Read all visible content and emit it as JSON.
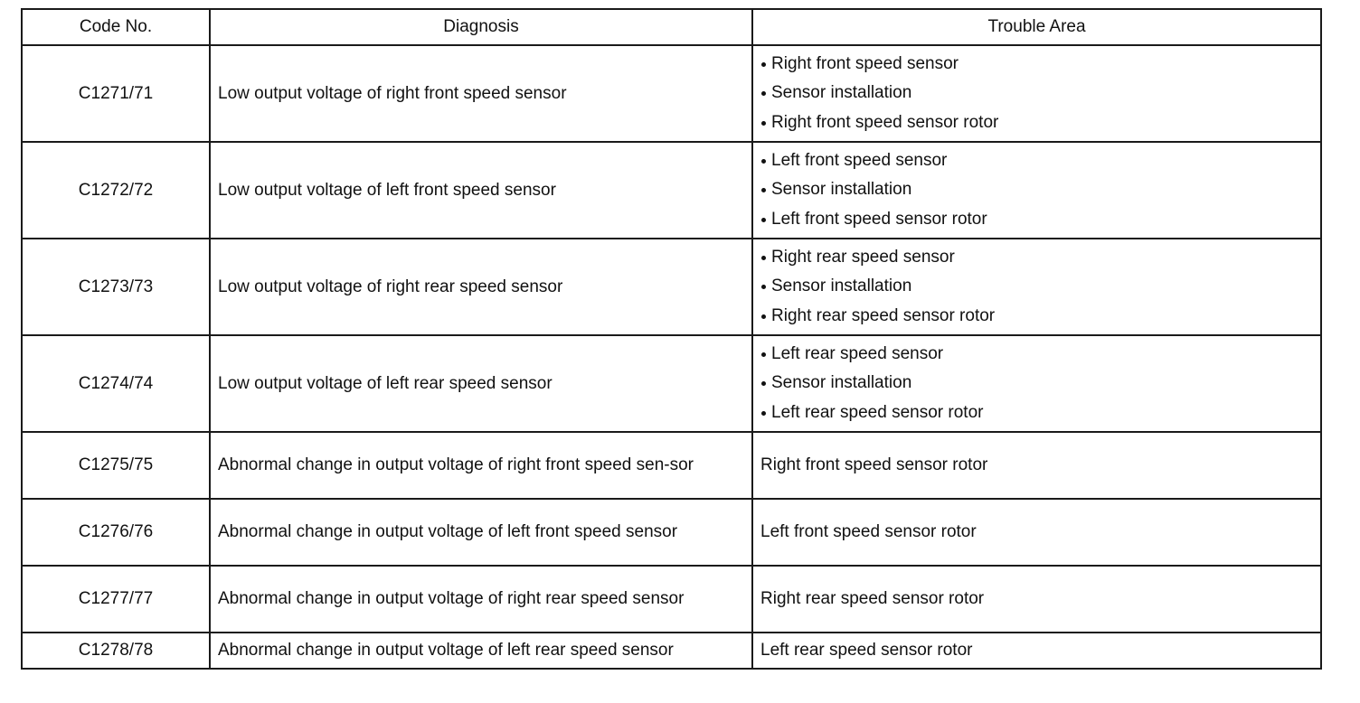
{
  "table": {
    "headers": {
      "code": "Code No.",
      "diagnosis": "Diagnosis",
      "trouble_area": "Trouble Area"
    },
    "rows": [
      {
        "code": "C1271/71",
        "diagnosis": "Low output voltage of right front speed sensor",
        "trouble_area": [
          "Right front speed sensor",
          "Sensor installation",
          "Right front speed sensor rotor"
        ]
      },
      {
        "code": "C1272/72",
        "diagnosis": "Low output voltage of left front speed sensor",
        "trouble_area": [
          "Left front speed sensor",
          "Sensor installation",
          "Left front speed sensor rotor"
        ]
      },
      {
        "code": "C1273/73",
        "diagnosis": "Low output voltage of right rear speed sensor",
        "trouble_area": [
          "Right rear speed sensor",
          "Sensor installation",
          "Right rear speed sensor rotor"
        ]
      },
      {
        "code": "C1274/74",
        "diagnosis": "Low output voltage of left rear speed sensor",
        "trouble_area": [
          "Left rear speed sensor",
          "Sensor installation",
          "Left rear speed sensor rotor"
        ]
      },
      {
        "code": "C1275/75",
        "diagnosis": "Abnormal change in output voltage of right front speed sen-sor",
        "trouble_area": [
          "Right front speed sensor rotor"
        ]
      },
      {
        "code": "C1276/76",
        "diagnosis": "Abnormal change in output voltage of left front speed sensor",
        "trouble_area": [
          "Left front speed sensor rotor"
        ]
      },
      {
        "code": "C1277/77",
        "diagnosis": "Abnormal change in output voltage of right rear speed sensor",
        "trouble_area": [
          "Right rear speed sensor rotor"
        ]
      },
      {
        "code": "C1278/78",
        "diagnosis": "Abnormal change in output voltage of left rear speed sensor",
        "trouble_area": [
          "Left rear speed sensor rotor"
        ]
      }
    ]
  }
}
